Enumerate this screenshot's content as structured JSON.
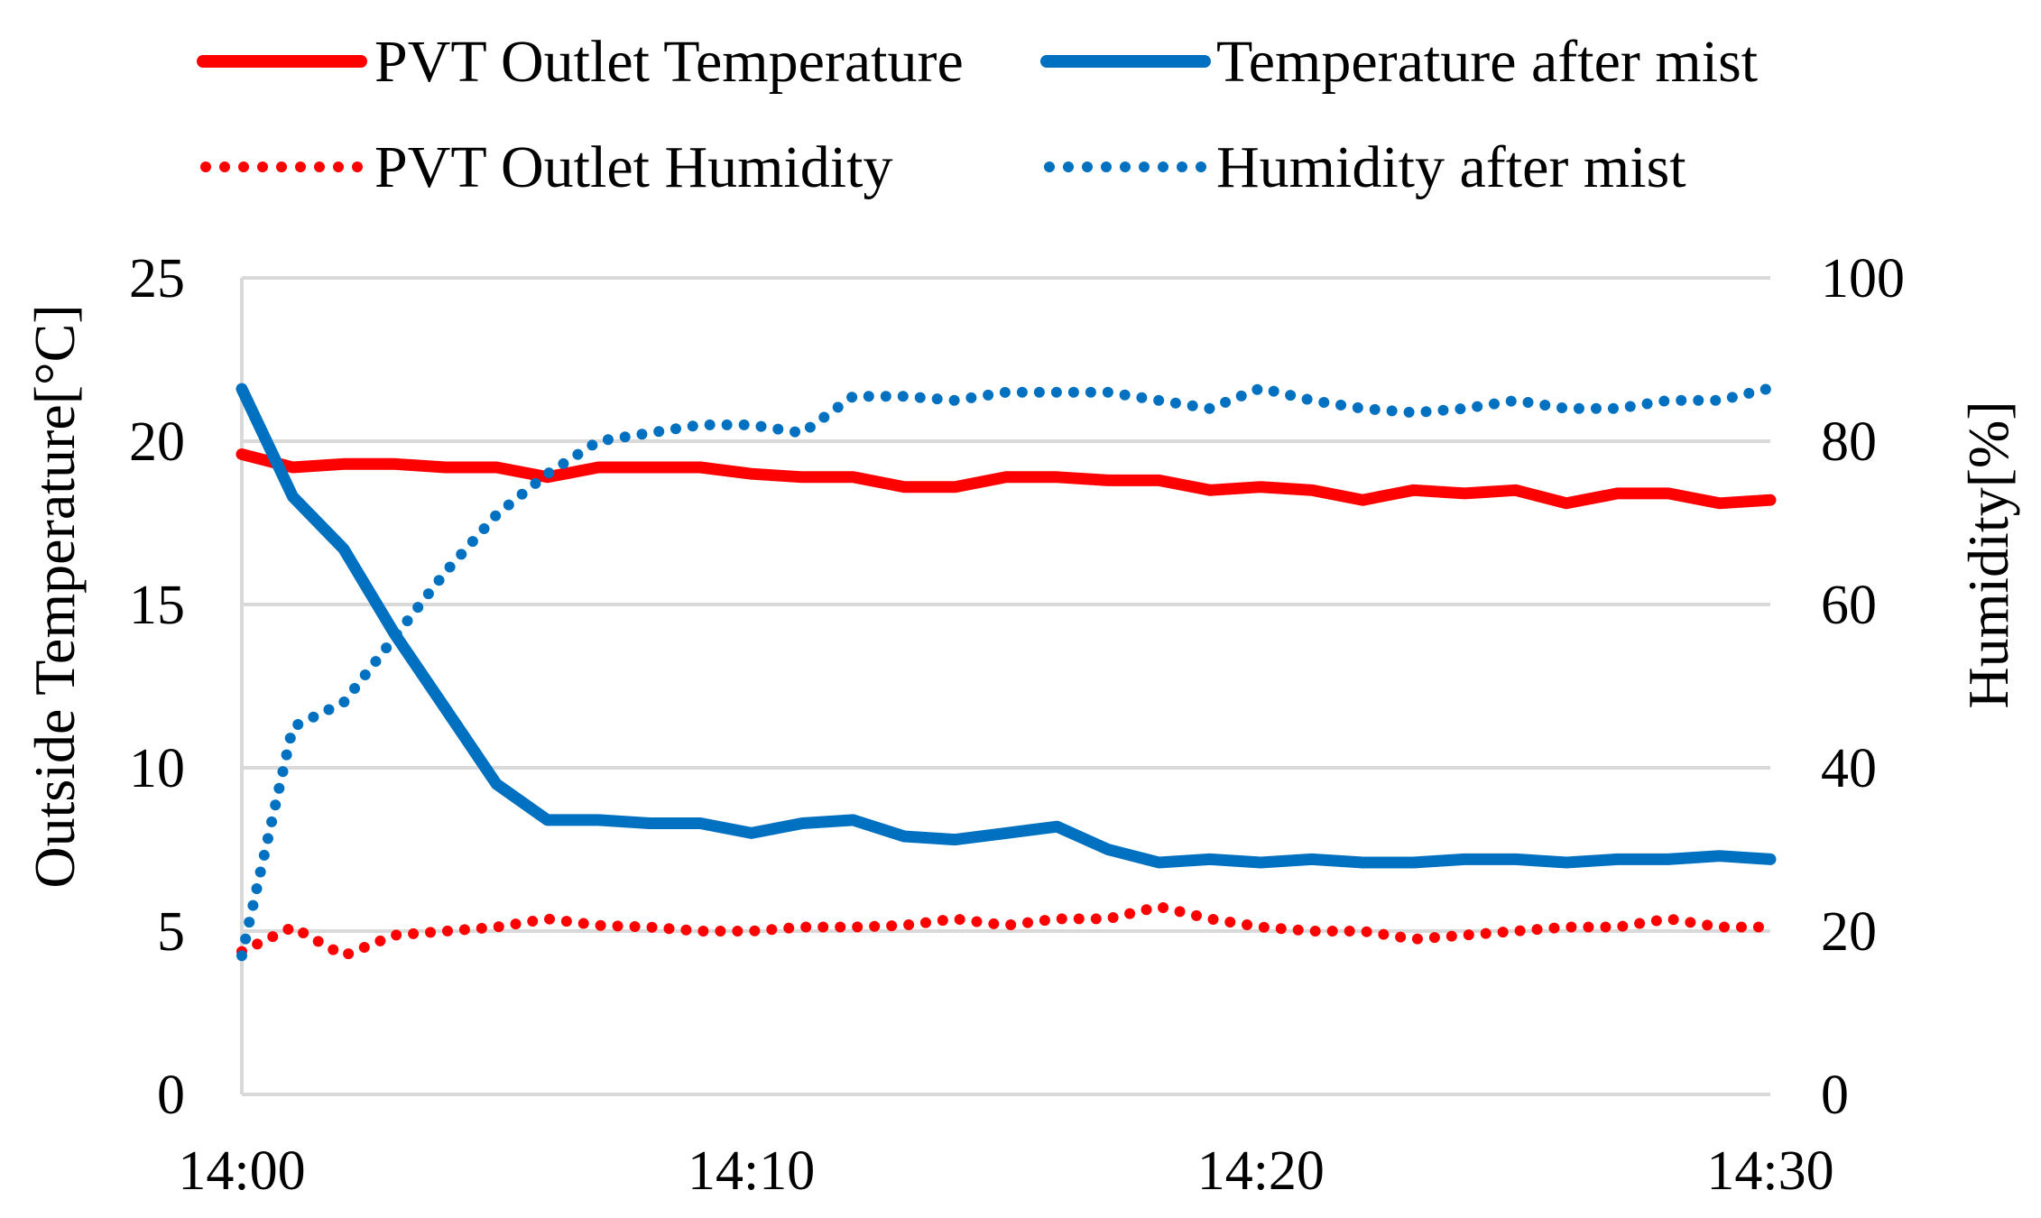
{
  "chart_data": {
    "type": "line",
    "x": [
      "14:00",
      "14:01",
      "14:02",
      "14:03",
      "14:04",
      "14:05",
      "14:06",
      "14:07",
      "14:08",
      "14:09",
      "14:10",
      "14:11",
      "14:12",
      "14:13",
      "14:14",
      "14:15",
      "14:16",
      "14:17",
      "14:18",
      "14:19",
      "14:20",
      "14:21",
      "14:22",
      "14:23",
      "14:24",
      "14:25",
      "14:26",
      "14:27",
      "14:28",
      "14:29",
      "14:30"
    ],
    "x_tick_labels": [
      "14:00",
      "14:10",
      "14:20",
      "14:30"
    ],
    "xlim": [
      0,
      30
    ],
    "y_left": {
      "label": "Outside Temperature[°C]",
      "range": [
        0,
        25
      ],
      "ticks": [
        0,
        5,
        10,
        15,
        20,
        25
      ]
    },
    "y_right": {
      "label": "Humidity[%]",
      "range": [
        0,
        100
      ],
      "ticks": [
        0,
        20,
        40,
        60,
        80,
        100
      ]
    },
    "grid": true,
    "legend_position": "top",
    "series": [
      {
        "name": "PVT Outlet Temperature",
        "axis": "left",
        "style": "solid",
        "color": "#ff0000",
        "values": [
          19.6,
          19.2,
          19.3,
          19.3,
          19.2,
          19.2,
          18.9,
          19.2,
          19.2,
          19.2,
          19.0,
          18.9,
          18.9,
          18.6,
          18.6,
          18.9,
          18.9,
          18.8,
          18.8,
          18.5,
          18.6,
          18.5,
          18.2,
          18.5,
          18.4,
          18.5,
          18.1,
          18.4,
          18.4,
          18.1,
          18.2
        ]
      },
      {
        "name": "Temperature after mist",
        "axis": "left",
        "style": "solid",
        "color": "#0070c0",
        "values": [
          21.6,
          18.3,
          16.7,
          14.1,
          11.8,
          9.5,
          8.4,
          8.4,
          8.3,
          8.3,
          8.0,
          8.3,
          8.4,
          7.9,
          7.8,
          8.0,
          8.2,
          7.5,
          7.1,
          7.2,
          7.1,
          7.2,
          7.1,
          7.1,
          7.2,
          7.2,
          7.1,
          7.2,
          7.2,
          7.3,
          7.2
        ]
      },
      {
        "name": "PVT Outlet Humidity",
        "axis": "right",
        "style": "dotted",
        "color": "#ff0000",
        "values": [
          17.5,
          20.5,
          17.0,
          19.5,
          20.0,
          20.5,
          21.5,
          20.7,
          20.5,
          20.0,
          20.0,
          20.5,
          20.5,
          20.7,
          21.5,
          20.7,
          21.5,
          21.5,
          23.0,
          21.5,
          20.5,
          20.0,
          20.0,
          19.0,
          19.5,
          20.0,
          20.5,
          20.5,
          21.5,
          20.5,
          20.5
        ]
      },
      {
        "name": "Humidity after mist",
        "axis": "right",
        "style": "dotted",
        "color": "#0070c0",
        "values": [
          17.0,
          45.0,
          48.0,
          56.0,
          64.0,
          71.0,
          76.0,
          80.0,
          81.0,
          82.0,
          82.0,
          81.0,
          85.5,
          85.5,
          85.0,
          86.0,
          86.0,
          86.0,
          85.0,
          84.0,
          86.5,
          85.0,
          84.0,
          83.5,
          84.0,
          85.0,
          84.0,
          84.0,
          85.0,
          85.0,
          86.5
        ]
      }
    ]
  }
}
